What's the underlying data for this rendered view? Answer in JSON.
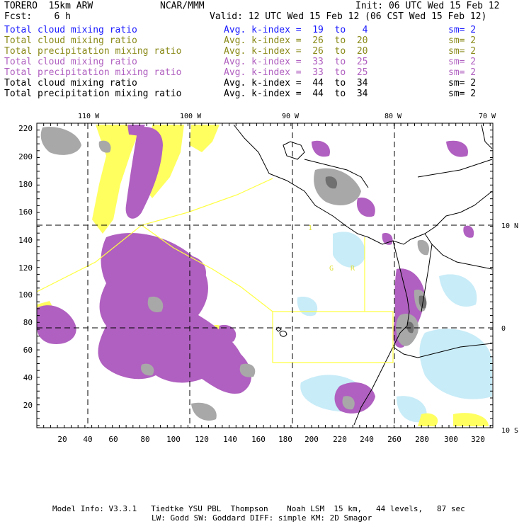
{
  "header": {
    "model": "TORERO  15km ARW",
    "org": "NCAR/MMM",
    "init": "Init: 06 UTC Wed 15 Feb 12",
    "fcst": "Fcst:    6 h",
    "valid": "Valid: 12 UTC Wed 15 Feb 12 (06 CST Wed 15 Feb 12)"
  },
  "legend": [
    {
      "field": "Total cloud mixing ratio",
      "kindex": "Avg. k-index =  19  to   4",
      "sm": "sm= 2",
      "color": "#1a1aff"
    },
    {
      "field": "Total cloud mixing ratio",
      "kindex": "Avg. k-index =  26  to  20",
      "sm": "sm= 2",
      "color": "#8a8a1a"
    },
    {
      "field": "Total precipitation mixing ratio",
      "kindex": "Avg. k-index =  26  to  20",
      "sm": "sm= 2",
      "color": "#8a8a1a"
    },
    {
      "field": "Total cloud mixing ratio",
      "kindex": "Avg. k-index =  33  to  25",
      "sm": "sm= 2",
      "color": "#b060c0"
    },
    {
      "field": "Total precipitation mixing ratio",
      "kindex": "Avg. k-index =  33  to  25",
      "sm": "sm= 2",
      "color": "#b060c0"
    },
    {
      "field": "Total cloud mixing ratio",
      "kindex": "Avg. k-index =  44  to  34",
      "sm": "sm= 2",
      "color": "#000000"
    },
    {
      "field": "Total precipitation mixing ratio",
      "kindex": "Avg. k-index =  44  to  34",
      "sm": "sm= 2",
      "color": "#000000"
    }
  ],
  "map": {
    "top_longitudes": [
      "110 W",
      "100 W",
      "90 W",
      "80 W",
      "70 W"
    ],
    "right_latitudes": [
      "10 N",
      "0",
      "10 S"
    ],
    "x_ticks": [
      "20",
      "40",
      "60",
      "80",
      "100",
      "120",
      "140",
      "160",
      "180",
      "200",
      "220",
      "240",
      "260",
      "280",
      "300",
      "320"
    ],
    "y_ticks": [
      "220",
      "200",
      "180",
      "160",
      "140",
      "120",
      "100",
      "80",
      "60",
      "40",
      "20"
    ],
    "labels_on_map": [
      "1",
      "G",
      "R"
    ],
    "colors": {
      "purple": "#b060c0",
      "yellow": "#ffff60",
      "gray": "#a8a8a8",
      "lightblue": "#c8ecf8"
    }
  },
  "footer": {
    "line1": "Model Info: V3.3.1   Tiedtke YSU PBL  Thompson    Noah LSM  15 km,   44 levels,   87 sec",
    "line2": "LW: Godd SW: Goddard DIFF: simple KM: 2D Smagor"
  }
}
